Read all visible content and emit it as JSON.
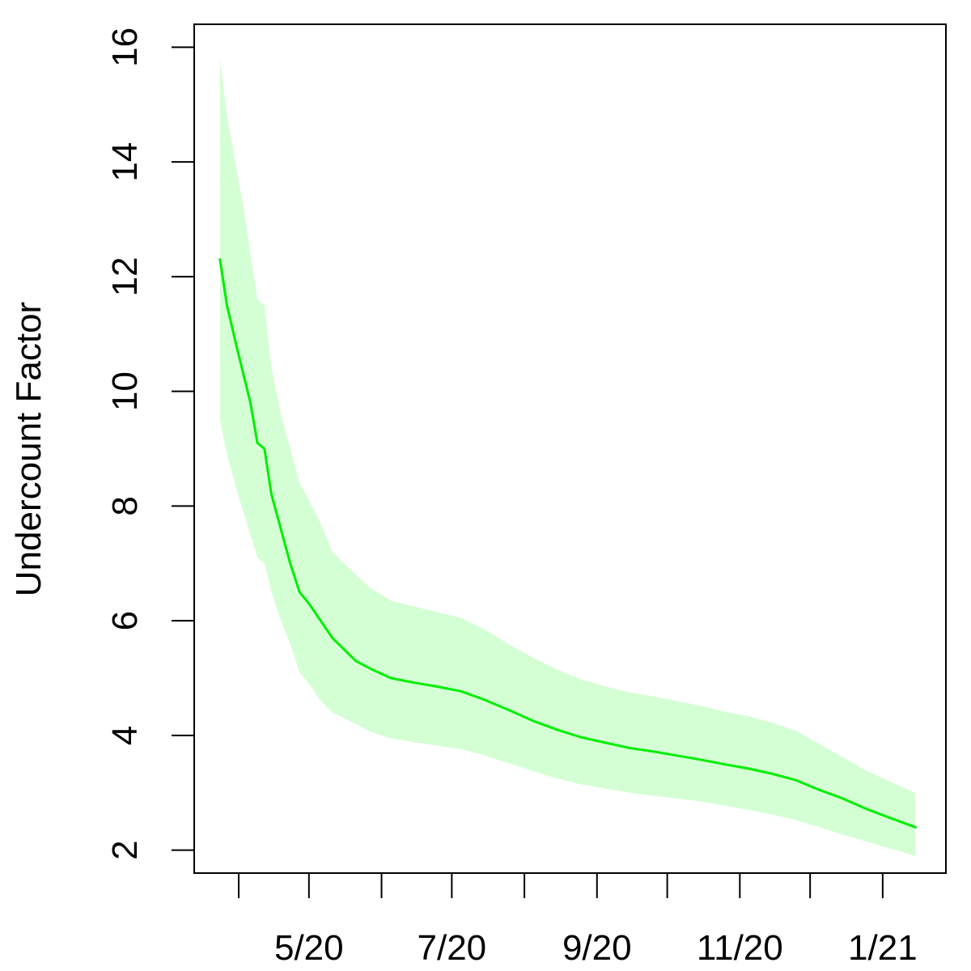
{
  "chart_data": {
    "type": "line",
    "title": "",
    "xlabel": "",
    "ylabel": "Undercount Factor",
    "xlim": [
      "2020-03-13",
      "2021-01-28"
    ],
    "ylim": [
      1.6,
      16.4
    ],
    "grid": false,
    "legend": "none",
    "x_ticks": [
      {
        "date": "2020-04-01",
        "label": ""
      },
      {
        "date": "2020-05-01",
        "label": "5/20"
      },
      {
        "date": "2020-06-01",
        "label": ""
      },
      {
        "date": "2020-07-01",
        "label": "7/20"
      },
      {
        "date": "2020-08-01",
        "label": ""
      },
      {
        "date": "2020-09-01",
        "label": "9/20"
      },
      {
        "date": "2020-10-01",
        "label": ""
      },
      {
        "date": "2020-11-01",
        "label": "11/20"
      },
      {
        "date": "2020-12-01",
        "label": ""
      },
      {
        "date": "2021-01-01",
        "label": "1/21"
      }
    ],
    "y_ticks": [
      2,
      4,
      6,
      8,
      10,
      12,
      14,
      16
    ],
    "series": [
      {
        "color": "#00ee00",
        "band_color": "#d4ffd4",
        "points": [
          {
            "x": "2020-03-24",
            "y": 12.3,
            "lo": 9.5,
            "hi": 15.8
          },
          {
            "x": "2020-03-27",
            "y": 11.5,
            "lo": 8.9,
            "hi": 14.8
          },
          {
            "x": "2020-03-31",
            "y": 10.8,
            "lo": 8.3,
            "hi": 13.9
          },
          {
            "x": "2020-04-03",
            "y": 10.3,
            "lo": 7.9,
            "hi": 13.2
          },
          {
            "x": "2020-04-06",
            "y": 9.8,
            "lo": 7.5,
            "hi": 12.4
          },
          {
            "x": "2020-04-09",
            "y": 9.1,
            "lo": 7.1,
            "hi": 11.6
          },
          {
            "x": "2020-04-12",
            "y": 9.0,
            "lo": 7.0,
            "hi": 11.5
          },
          {
            "x": "2020-04-15",
            "y": 8.2,
            "lo": 6.5,
            "hi": 10.4
          },
          {
            "x": "2020-04-19",
            "y": 7.6,
            "lo": 6.0,
            "hi": 9.6
          },
          {
            "x": "2020-04-23",
            "y": 7.0,
            "lo": 5.6,
            "hi": 9.0
          },
          {
            "x": "2020-04-27",
            "y": 6.5,
            "lo": 5.1,
            "hi": 8.4
          },
          {
            "x": "2020-05-01",
            "y": 6.3,
            "lo": 4.9,
            "hi": 8.1
          },
          {
            "x": "2020-05-06",
            "y": 6.0,
            "lo": 4.6,
            "hi": 7.7
          },
          {
            "x": "2020-05-11",
            "y": 5.7,
            "lo": 4.4,
            "hi": 7.2
          },
          {
            "x": "2020-05-16",
            "y": 5.5,
            "lo": 4.3,
            "hi": 7.0
          },
          {
            "x": "2020-05-21",
            "y": 5.3,
            "lo": 4.2,
            "hi": 6.8
          },
          {
            "x": "2020-05-28",
            "y": 5.15,
            "lo": 4.05,
            "hi": 6.55
          },
          {
            "x": "2020-06-05",
            "y": 5.0,
            "lo": 3.95,
            "hi": 6.35
          },
          {
            "x": "2020-06-15",
            "y": 4.92,
            "lo": 3.88,
            "hi": 6.25
          },
          {
            "x": "2020-06-25",
            "y": 4.85,
            "lo": 3.82,
            "hi": 6.15
          },
          {
            "x": "2020-07-05",
            "y": 4.77,
            "lo": 3.76,
            "hi": 6.05
          },
          {
            "x": "2020-07-15",
            "y": 4.62,
            "lo": 3.65,
            "hi": 5.85
          },
          {
            "x": "2020-07-25",
            "y": 4.45,
            "lo": 3.52,
            "hi": 5.6
          },
          {
            "x": "2020-08-05",
            "y": 4.25,
            "lo": 3.37,
            "hi": 5.35
          },
          {
            "x": "2020-08-15",
            "y": 4.1,
            "lo": 3.25,
            "hi": 5.15
          },
          {
            "x": "2020-08-25",
            "y": 3.97,
            "lo": 3.15,
            "hi": 4.98
          },
          {
            "x": "2020-09-05",
            "y": 3.87,
            "lo": 3.07,
            "hi": 4.85
          },
          {
            "x": "2020-09-15",
            "y": 3.78,
            "lo": 3.0,
            "hi": 4.75
          },
          {
            "x": "2020-09-25",
            "y": 3.72,
            "lo": 2.95,
            "hi": 4.68
          },
          {
            "x": "2020-10-05",
            "y": 3.65,
            "lo": 2.9,
            "hi": 4.6
          },
          {
            "x": "2020-10-15",
            "y": 3.58,
            "lo": 2.85,
            "hi": 4.52
          },
          {
            "x": "2020-10-25",
            "y": 3.5,
            "lo": 2.78,
            "hi": 4.42
          },
          {
            "x": "2020-11-05",
            "y": 3.42,
            "lo": 2.7,
            "hi": 4.33
          },
          {
            "x": "2020-11-15",
            "y": 3.33,
            "lo": 2.62,
            "hi": 4.22
          },
          {
            "x": "2020-11-25",
            "y": 3.22,
            "lo": 2.52,
            "hi": 4.08
          },
          {
            "x": "2020-12-05",
            "y": 3.05,
            "lo": 2.4,
            "hi": 3.85
          },
          {
            "x": "2020-12-15",
            "y": 2.9,
            "lo": 2.27,
            "hi": 3.62
          },
          {
            "x": "2020-12-25",
            "y": 2.72,
            "lo": 2.15,
            "hi": 3.38
          },
          {
            "x": "2021-01-05",
            "y": 2.55,
            "lo": 2.02,
            "hi": 3.18
          },
          {
            "x": "2021-01-15",
            "y": 2.4,
            "lo": 1.9,
            "hi": 3.0
          }
        ]
      }
    ]
  }
}
